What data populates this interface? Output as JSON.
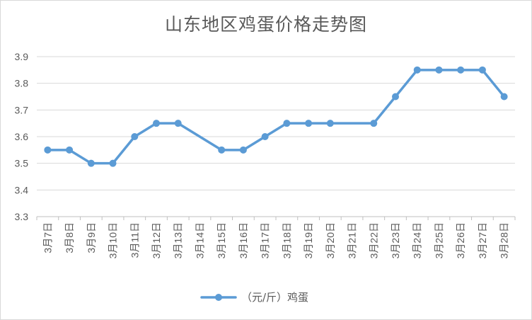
{
  "chart_data": {
    "type": "line",
    "title": "山东地区鸡蛋价格走势图",
    "categories": [
      "3月7日",
      "3月8日",
      "3月9日",
      "3月10日",
      "3月11日",
      "3月12日",
      "3月13日",
      "3月14日",
      "3月15日",
      "3月16日",
      "3月17日",
      "3月18日",
      "3月19日",
      "3月20日",
      "3月21日",
      "3月22日",
      "3月23日",
      "3月24日",
      "3月25日",
      "3月26日",
      "3月27日",
      "3月28日"
    ],
    "series": [
      {
        "name": "（元/斤）鸡蛋",
        "color": "#5b9bd5",
        "values": [
          3.55,
          3.55,
          3.5,
          3.5,
          3.6,
          3.65,
          3.65,
          null,
          3.55,
          3.55,
          3.6,
          3.65,
          3.65,
          3.65,
          null,
          3.65,
          3.75,
          3.85,
          3.85,
          3.85,
          3.85,
          3.75
        ]
      }
    ],
    "ylim": [
      3.3,
      3.9
    ],
    "yticks": [
      "3.3",
      "3.4",
      "3.5",
      "3.6",
      "3.7",
      "3.8",
      "3.9"
    ],
    "grid": true,
    "legend": "bottom",
    "connect_gaps": true
  }
}
